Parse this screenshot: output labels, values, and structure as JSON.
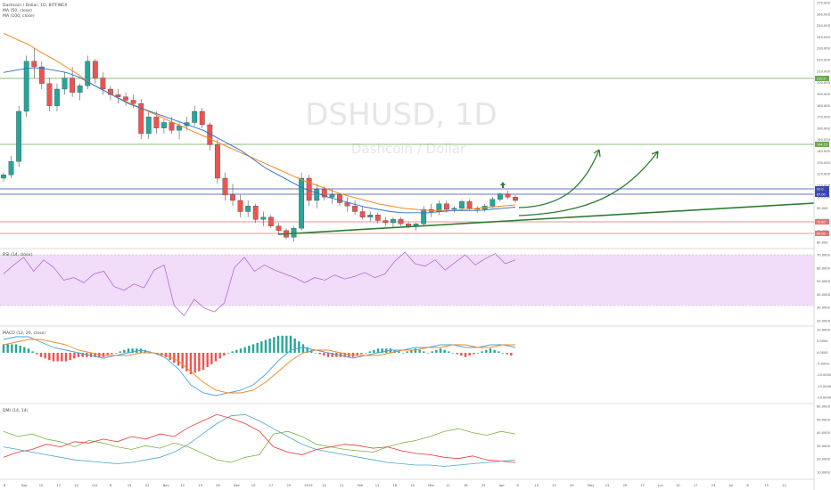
{
  "watermark": {
    "symbol": "DSHUSD, 1D",
    "name": "Dashcoin / Dollar"
  },
  "panes": {
    "price": {
      "legend": [
        "Dashcoin / Dollar, 1D, BITFINEX",
        "MA (50, close)",
        "MA (100, close)"
      ]
    },
    "rsi": {
      "legend": "RSI (14, close)"
    },
    "macd": {
      "legend": "MACD (12, 26, close)"
    },
    "dmi": {
      "legend": "DMI (14, 14)"
    }
  },
  "x_axis": {
    "labels": [
      "8",
      "Sep",
      "10",
      "17",
      "24",
      "Oct",
      "8",
      "15",
      "22",
      "Nov",
      "12",
      "19",
      "26",
      "Dec",
      "10",
      "17",
      "24",
      "2019",
      "14",
      "21",
      "Feb",
      "11",
      "18",
      "25",
      "Mar",
      "11",
      "18",
      "25",
      "Apr",
      "8",
      "15",
      "22",
      "29",
      "May",
      "13",
      "20",
      "27",
      "Jun",
      "10",
      "17",
      "24",
      "Jul",
      "8",
      "15",
      "22"
    ]
  },
  "price_axis": {
    "labels": [
      "270.000",
      "260.000",
      "250.000",
      "240.000",
      "230.000",
      "220.000",
      "210.000",
      "200.000",
      "190.000",
      "180.000",
      "170.000",
      "160.000",
      "150.000",
      "140.000",
      "130.000",
      "120.000",
      "110.000",
      "100.000",
      "90.000",
      "80.000",
      "70.000",
      "60.000"
    ]
  },
  "rsi_axis": {
    "labels": [
      "70.0000",
      "60.0000",
      "50.0000",
      "40.0000",
      "30.0000",
      "20.0000"
    ]
  },
  "macd_axis": {
    "labels": [
      "10.0000",
      "5.0000",
      "0.0000",
      "-5.0000",
      "-10.0000",
      "-15.0000",
      "-20.0000"
    ]
  },
  "dmi_axis": {
    "labels": [
      "60.0000",
      "50.0000",
      "40.0000",
      "30.0000",
      "20.0000",
      "10.0000"
    ]
  },
  "tags": [
    "210.9",
    "144.15",
    "92.0",
    "87.00",
    "75.80",
    "60.00"
  ],
  "colors": {
    "up": "#26a69a",
    "down": "#ef5350",
    "ma50": "#2e6fc9",
    "ma100": "#f08a24",
    "green_line": "#6aa84f",
    "blue_line": "#3949ab",
    "red_line": "#e57373",
    "rsi_fill": "#f1ddfa",
    "rsi_line": "#b26bd6",
    "trend": "#2e7d32"
  },
  "chart_data": {
    "type": "candlestick",
    "price_levels": [
      210.9,
      144.15,
      92.0,
      87.0,
      75.8,
      60.0
    ],
    "ohlc": [
      [
        115,
        120,
        112,
        118
      ],
      [
        118,
        135,
        115,
        130
      ],
      [
        130,
        180,
        125,
        175
      ],
      [
        175,
        225,
        170,
        220
      ],
      [
        220,
        232,
        205,
        215
      ],
      [
        215,
        220,
        195,
        200
      ],
      [
        200,
        205,
        175,
        180
      ],
      [
        180,
        200,
        175,
        195
      ],
      [
        195,
        210,
        190,
        205
      ],
      [
        205,
        215,
        188,
        192
      ],
      [
        192,
        200,
        185,
        198
      ],
      [
        198,
        225,
        195,
        220
      ],
      [
        220,
        222,
        200,
        205
      ],
      [
        205,
        210,
        190,
        195
      ],
      [
        195,
        198,
        185,
        190
      ],
      [
        190,
        195,
        182,
        188
      ],
      [
        188,
        192,
        180,
        185
      ],
      [
        185,
        190,
        178,
        182
      ],
      [
        182,
        186,
        150,
        155
      ],
      [
        155,
        175,
        150,
        170
      ],
      [
        170,
        175,
        155,
        160
      ],
      [
        160,
        168,
        155,
        165
      ],
      [
        165,
        170,
        155,
        158
      ],
      [
        158,
        165,
        150,
        162
      ],
      [
        162,
        170,
        158,
        165
      ],
      [
        165,
        180,
        162,
        175
      ],
      [
        175,
        178,
        160,
        163
      ],
      [
        163,
        165,
        140,
        145
      ],
      [
        145,
        150,
        110,
        115
      ],
      [
        115,
        120,
        95,
        100
      ],
      [
        100,
        110,
        90,
        95
      ],
      [
        95,
        100,
        80,
        85
      ],
      [
        85,
        95,
        80,
        90
      ],
      [
        90,
        92,
        75,
        78
      ],
      [
        78,
        85,
        72,
        80
      ],
      [
        80,
        82,
        70,
        72
      ],
      [
        72,
        75,
        65,
        68
      ],
      [
        68,
        70,
        60,
        62
      ],
      [
        62,
        72,
        58,
        70
      ],
      [
        70,
        120,
        68,
        115
      ],
      [
        115,
        118,
        90,
        95
      ],
      [
        95,
        110,
        88,
        105
      ],
      [
        105,
        108,
        95,
        98
      ],
      [
        98,
        105,
        92,
        100
      ],
      [
        100,
        102,
        90,
        93
      ],
      [
        93,
        98,
        85,
        90
      ],
      [
        90,
        95,
        82,
        85
      ],
      [
        85,
        90,
        78,
        80
      ],
      [
        80,
        85,
        76,
        82
      ],
      [
        82,
        84,
        74,
        77
      ],
      [
        77,
        80,
        72,
        75
      ],
      [
        75,
        80,
        70,
        78
      ],
      [
        78,
        80,
        72,
        74
      ],
      [
        74,
        76,
        70,
        72
      ],
      [
        72,
        75,
        68,
        74
      ],
      [
        74,
        90,
        72,
        87
      ],
      [
        87,
        92,
        80,
        85
      ],
      [
        85,
        95,
        82,
        92
      ],
      [
        92,
        95,
        84,
        87
      ],
      [
        87,
        90,
        84,
        88
      ],
      [
        88,
        96,
        86,
        94
      ],
      [
        94,
        96,
        86,
        88
      ],
      [
        88,
        90,
        84,
        87
      ],
      [
        87,
        92,
        85,
        90
      ],
      [
        90,
        98,
        88,
        96
      ],
      [
        96,
        102,
        94,
        101
      ],
      [
        101,
        104,
        96,
        98
      ],
      [
        98,
        100,
        93,
        95
      ]
    ],
    "ma50": [
      210,
      212,
      214,
      214,
      212,
      210,
      206,
      200,
      194,
      188,
      182,
      178,
      174,
      170,
      166,
      162,
      158,
      152,
      146,
      140,
      132,
      124,
      118,
      112,
      106,
      102,
      98,
      95,
      92,
      89,
      87,
      85,
      84,
      84,
      84,
      85,
      86,
      86,
      86,
      87,
      88,
      89
    ],
    "ma100": [
      245,
      240,
      235,
      228,
      222,
      215,
      208,
      200,
      194,
      188,
      183,
      178,
      173,
      168,
      163,
      158,
      153,
      148,
      143,
      138,
      133,
      128,
      123,
      118,
      113,
      109,
      105,
      101,
      98,
      95,
      92,
      90,
      88,
      87,
      86,
      86,
      86,
      87,
      88,
      89,
      90,
      91
    ],
    "rsi": [
      55,
      62,
      68,
      57,
      66,
      60,
      50,
      52,
      48,
      55,
      57,
      45,
      42,
      47,
      44,
      58,
      62,
      30,
      22,
      35,
      28,
      25,
      32,
      60,
      68,
      57,
      62,
      58,
      55,
      52,
      48,
      52,
      50,
      54,
      51,
      53,
      56,
      52,
      55,
      65,
      72,
      63,
      61,
      66,
      58,
      64,
      70,
      62,
      67,
      71,
      63,
      66
    ],
    "macd": [
      5,
      6,
      6,
      4,
      2,
      1,
      0,
      -1,
      -2,
      -1,
      0,
      1,
      0,
      -2,
      -6,
      -12,
      -15,
      -16,
      -15,
      -14,
      -12,
      -8,
      -3,
      1,
      2,
      1,
      0,
      -1,
      -2,
      -1,
      0,
      1,
      1,
      2,
      2,
      3,
      3,
      2,
      2,
      3,
      3,
      2
    ],
    "macd_signal": [
      3,
      4,
      5,
      5,
      4,
      3,
      1,
      0,
      -1,
      -1,
      -1,
      0,
      0,
      -1,
      -3,
      -7,
      -11,
      -14,
      -15,
      -15,
      -14,
      -11,
      -7,
      -3,
      0,
      1,
      1,
      0,
      -1,
      -1,
      -1,
      0,
      1,
      1,
      2,
      2,
      3,
      3,
      2,
      2,
      3,
      3
    ],
    "dmi_plus": [
      42,
      38,
      40,
      36,
      34,
      30,
      35,
      33,
      30,
      28,
      31,
      29,
      33,
      30,
      25,
      20,
      18,
      22,
      24,
      40,
      42,
      38,
      32,
      30,
      28,
      27,
      26,
      30,
      33,
      35,
      38,
      42,
      44,
      41,
      39,
      42,
      40
    ],
    "dmi_minus": [
      22,
      26,
      28,
      32,
      30,
      34,
      33,
      36,
      34,
      38,
      36,
      40,
      38,
      45,
      50,
      55,
      52,
      48,
      42,
      30,
      26,
      24,
      28,
      30,
      32,
      31,
      29,
      30,
      27,
      25,
      24,
      22,
      21,
      23,
      20,
      19,
      18
    ],
    "adx": [
      30,
      28,
      26,
      24,
      22,
      20,
      19,
      18,
      17,
      18,
      20,
      22,
      26,
      32,
      40,
      48,
      54,
      55,
      50,
      44,
      38,
      32,
      28,
      26,
      24,
      22,
      20,
      18,
      17,
      16,
      16,
      15,
      16,
      17,
      18,
      19,
      20
    ]
  }
}
